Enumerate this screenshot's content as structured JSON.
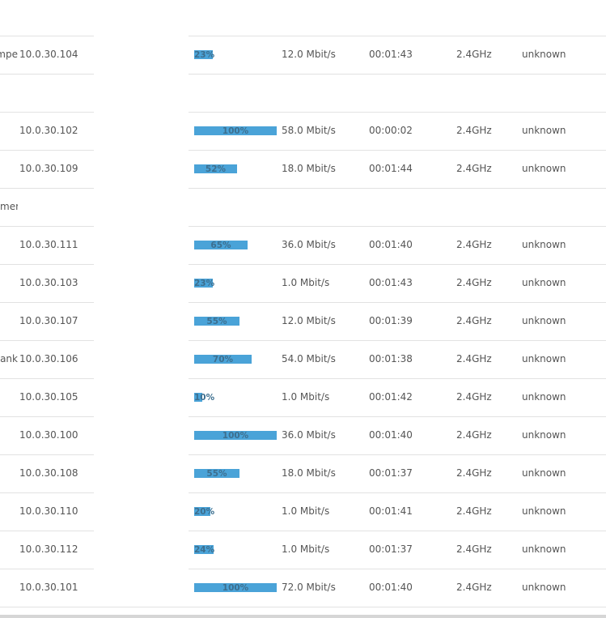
{
  "clients": [
    {
      "name_fragment": "mpe",
      "ip": "10.0.30.104",
      "signal_percent": 23,
      "signal_label": "23%",
      "rate": "12.0 Mbit/s",
      "time": "00:01:43",
      "band": "2.4GHz",
      "vendor": "unknown"
    },
    {
      "group_label": ""
    },
    {
      "name_fragment": "",
      "ip": "10.0.30.102",
      "signal_percent": 100,
      "signal_label": "100%",
      "rate": "58.0 Mbit/s",
      "time": "00:00:02",
      "band": "2.4GHz",
      "vendor": "unknown"
    },
    {
      "name_fragment": "",
      "ip": "10.0.30.109",
      "signal_percent": 52,
      "signal_label": "52%",
      "rate": "18.0 Mbit/s",
      "time": "00:01:44",
      "band": "2.4GHz",
      "vendor": "unknown"
    },
    {
      "group_label": "mer"
    },
    {
      "name_fragment": "",
      "ip": "10.0.30.111",
      "signal_percent": 65,
      "signal_label": "65%",
      "rate": "36.0 Mbit/s",
      "time": "00:01:40",
      "band": "2.4GHz",
      "vendor": "unknown"
    },
    {
      "name_fragment": "",
      "ip": "10.0.30.103",
      "signal_percent": 23,
      "signal_label": "23%",
      "rate": "1.0 Mbit/s",
      "time": "00:01:43",
      "band": "2.4GHz",
      "vendor": "unknown"
    },
    {
      "name_fragment": "",
      "ip": "10.0.30.107",
      "signal_percent": 55,
      "signal_label": "55%",
      "rate": "12.0 Mbit/s",
      "time": "00:01:39",
      "band": "2.4GHz",
      "vendor": "unknown"
    },
    {
      "name_fragment": "ank",
      "ip": "10.0.30.106",
      "signal_percent": 70,
      "signal_label": "70%",
      "rate": "54.0 Mbit/s",
      "time": "00:01:38",
      "band": "2.4GHz",
      "vendor": "unknown"
    },
    {
      "name_fragment": "",
      "ip": "10.0.30.105",
      "signal_percent": 10,
      "signal_label": "10%",
      "rate": "1.0 Mbit/s",
      "time": "00:01:42",
      "band": "2.4GHz",
      "vendor": "unknown"
    },
    {
      "name_fragment": "",
      "ip": "10.0.30.100",
      "signal_percent": 100,
      "signal_label": "100%",
      "rate": "36.0 Mbit/s",
      "time": "00:01:40",
      "band": "2.4GHz",
      "vendor": "unknown"
    },
    {
      "name_fragment": "",
      "ip": "10.0.30.108",
      "signal_percent": 55,
      "signal_label": "55%",
      "rate": "18.0 Mbit/s",
      "time": "00:01:37",
      "band": "2.4GHz",
      "vendor": "unknown"
    },
    {
      "name_fragment": "",
      "ip": "10.0.30.110",
      "signal_percent": 20,
      "signal_label": "20%",
      "rate": "1.0 Mbit/s",
      "time": "00:01:41",
      "band": "2.4GHz",
      "vendor": "unknown"
    },
    {
      "name_fragment": "",
      "ip": "10.0.30.112",
      "signal_percent": 24,
      "signal_label": "24%",
      "rate": "1.0 Mbit/s",
      "time": "00:01:37",
      "band": "2.4GHz",
      "vendor": "unknown"
    },
    {
      "name_fragment": "",
      "ip": "10.0.30.101",
      "signal_percent": 100,
      "signal_label": "100%",
      "rate": "72.0 Mbit/s",
      "time": "00:01:40",
      "band": "2.4GHz",
      "vendor": "unknown"
    }
  ],
  "colors": {
    "signal_bar": "#4aa3d8",
    "signal_text": "#3d6f8f",
    "grid_line": "#e2e2e2",
    "text": "#555555"
  }
}
